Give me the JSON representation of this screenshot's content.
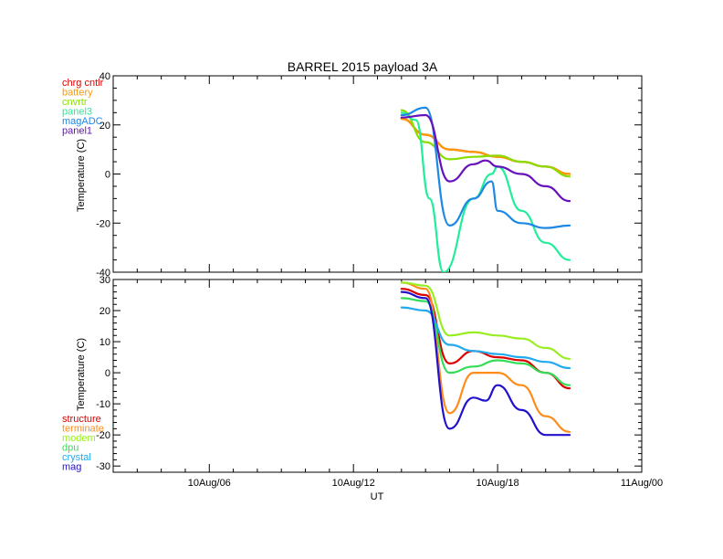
{
  "chart_data": [
    {
      "type": "line",
      "title": "BARREL 2015 payload 3A",
      "xlabel": "",
      "ylabel": "Temperature (C)",
      "ylim": [
        -40,
        40
      ],
      "xlim": [
        "10Aug/02",
        "11Aug/00"
      ],
      "yticks": [
        "-40",
        "-20",
        "0",
        "20",
        "40"
      ],
      "legend_position": "top-left",
      "series": [
        {
          "name": "chrg cntlr",
          "color": "#dd0000",
          "x": [
            "10Aug/14:00",
            "10Aug/15:00",
            "10Aug/16:00",
            "10Aug/17:00",
            "10Aug/18:00",
            "10Aug/19:00",
            "10Aug/20:00",
            "10Aug/21:00"
          ],
          "values": [
            22.5,
            16,
            10,
            9,
            7,
            5,
            3,
            0
          ]
        },
        {
          "name": "battery",
          "color": "#ff9900",
          "x": [
            "10Aug/14:00",
            "10Aug/15:00",
            "10Aug/16:00",
            "10Aug/17:00",
            "10Aug/18:00",
            "10Aug/19:00",
            "10Aug/20:00",
            "10Aug/21:00"
          ],
          "values": [
            22.5,
            16,
            10,
            9,
            7,
            5,
            3,
            0
          ]
        },
        {
          "name": "cnvrtr",
          "color": "#88dd00",
          "x": [
            "10Aug/14:00",
            "10Aug/15:00",
            "10Aug/16:00",
            "10Aug/17:00",
            "10Aug/18:00",
            "10Aug/19:00",
            "10Aug/20:00",
            "10Aug/21:00"
          ],
          "values": [
            26,
            13,
            6,
            7,
            7.5,
            5,
            3,
            -1
          ]
        },
        {
          "name": "panel3",
          "color": "#22ee99",
          "x": [
            "10Aug/14:00",
            "10Aug/14:36",
            "10Aug/15:10",
            "10Aug/15:45",
            "10Aug/17:00",
            "10Aug/17:45",
            "10Aug/18:00",
            "10Aug/19:00",
            "10Aug/20:00",
            "10Aug/21:00"
          ],
          "values": [
            25,
            22,
            -10,
            -40,
            -10,
            0,
            3,
            -15,
            -28,
            -35
          ]
        },
        {
          "name": "magADC",
          "color": "#1e88e5",
          "x": [
            "10Aug/14:00",
            "10Aug/15:00",
            "10Aug/16:00",
            "10Aug/17:00",
            "10Aug/17:45",
            "10Aug/18:00",
            "10Aug/19:00",
            "10Aug/20:00",
            "10Aug/21:00"
          ],
          "values": [
            24,
            27,
            -21,
            -10,
            -3,
            -15,
            -20,
            -22,
            -21
          ]
        },
        {
          "name": "panel1",
          "color": "#6611bb",
          "x": [
            "10Aug/14:00",
            "10Aug/15:00",
            "10Aug/16:00",
            "10Aug/17:00",
            "10Aug/17:30",
            "10Aug/18:00",
            "10Aug/19:00",
            "10Aug/20:00",
            "10Aug/21:00"
          ],
          "values": [
            23,
            24,
            -3,
            4,
            5.5,
            3,
            0,
            -5,
            -11
          ]
        }
      ]
    },
    {
      "type": "line",
      "title": "",
      "xlabel": "UT",
      "ylabel": "Temperature (C)",
      "ylim": [
        -32,
        30
      ],
      "xlim": [
        "10Aug/02",
        "11Aug/00"
      ],
      "yticks": [
        "-30",
        "-20",
        "-10",
        "0",
        "10",
        "20",
        "30"
      ],
      "xticks": [
        "10Aug/06",
        "10Aug/12",
        "10Aug/18",
        "11Aug/00"
      ],
      "legend_position": "bottom-left",
      "series": [
        {
          "name": "structure",
          "color": "#dd0000",
          "x": [
            "10Aug/14:00",
            "10Aug/15:00",
            "10Aug/16:00",
            "10Aug/17:00",
            "10Aug/18:00",
            "10Aug/19:00",
            "10Aug/20:00",
            "10Aug/21:00"
          ],
          "values": [
            27,
            25,
            3,
            7,
            5,
            4,
            0,
            -5
          ]
        },
        {
          "name": "terminate",
          "color": "#ff8c1a",
          "x": [
            "10Aug/14:00",
            "10Aug/15:00",
            "10Aug/16:00",
            "10Aug/17:00",
            "10Aug/18:00",
            "10Aug/19:00",
            "10Aug/20:00",
            "10Aug/21:00"
          ],
          "values": [
            29,
            27,
            -13,
            0,
            0,
            -4,
            -14,
            -19
          ]
        },
        {
          "name": "modem",
          "color": "#99ee22",
          "x": [
            "10Aug/14:00",
            "10Aug/15:00",
            "10Aug/16:00",
            "10Aug/17:00",
            "10Aug/18:00",
            "10Aug/19:00",
            "10Aug/20:00",
            "10Aug/21:00"
          ],
          "values": [
            29,
            28,
            12,
            13,
            12,
            11,
            8,
            4.5
          ]
        },
        {
          "name": "dpu",
          "color": "#33dd55",
          "x": [
            "10Aug/14:00",
            "10Aug/15:00",
            "10Aug/16:00",
            "10Aug/17:00",
            "10Aug/18:00",
            "10Aug/19:00",
            "10Aug/20:00",
            "10Aug/21:00"
          ],
          "values": [
            24,
            23,
            0,
            2,
            4,
            3,
            0,
            -4
          ]
        },
        {
          "name": "crystal",
          "color": "#22aaee",
          "x": [
            "10Aug/14:00",
            "10Aug/15:00",
            "10Aug/16:00",
            "10Aug/17:00",
            "10Aug/18:00",
            "10Aug/19:00",
            "10Aug/20:00",
            "10Aug/21:00"
          ],
          "values": [
            21,
            20,
            9,
            7,
            6,
            5,
            3.5,
            1.5
          ]
        },
        {
          "name": "mag",
          "color": "#2211cc",
          "x": [
            "10Aug/14:00",
            "10Aug/15:00",
            "10Aug/16:00",
            "10Aug/17:00",
            "10Aug/17:30",
            "10Aug/18:00",
            "10Aug/19:00",
            "10Aug/20:00",
            "10Aug/21:00"
          ],
          "values": [
            26,
            24,
            -18,
            -8,
            -9,
            -4,
            -12,
            -20,
            -20
          ]
        }
      ]
    }
  ]
}
